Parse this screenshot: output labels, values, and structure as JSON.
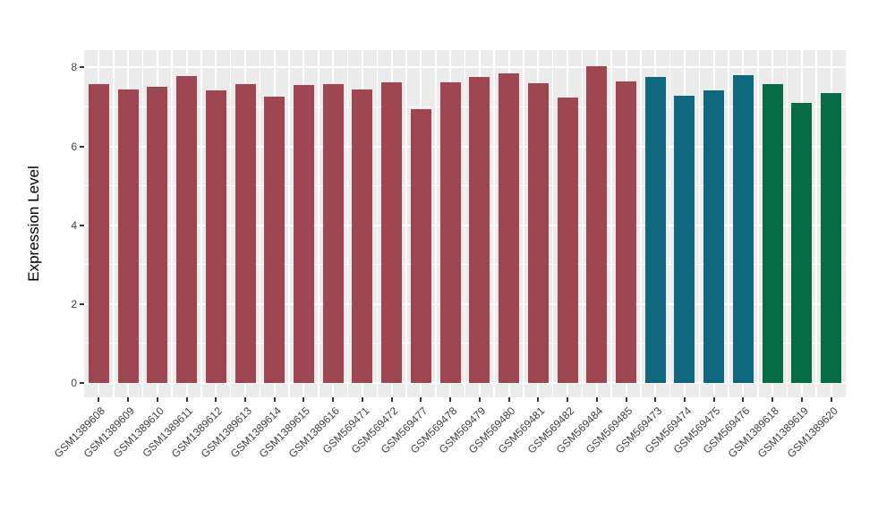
{
  "figure": {
    "background": "#FFFFFF",
    "panel_background": "#EBEBEB",
    "gridline_color": "#FFFFFF",
    "axis_text_color": "#404040",
    "tick_mark_color": "#333333"
  },
  "chart_data": {
    "type": "bar",
    "title": "",
    "xlabel": "",
    "ylabel": "Expression Level",
    "ylim": [
      0,
      8.44
    ],
    "yticks": [
      0,
      2,
      4,
      6,
      8
    ],
    "grid": true,
    "legend_position": "none",
    "categories": [
      "GSM1389608",
      "GSM1389609",
      "GSM1389610",
      "GSM1389611",
      "GSM1389612",
      "GSM1389613",
      "GSM1389614",
      "GSM1389615",
      "GSM1389616",
      "GSM569471",
      "GSM569472",
      "GSM569477",
      "GSM569478",
      "GSM569479",
      "GSM569480",
      "GSM569481",
      "GSM569482",
      "GSM569484",
      "GSM569485",
      "GSM569473",
      "GSM569474",
      "GSM569475",
      "GSM569476",
      "GSM1389618",
      "GSM1389619",
      "GSM1389620"
    ],
    "values": [
      7.58,
      7.45,
      7.5,
      7.78,
      7.42,
      7.58,
      7.27,
      7.56,
      7.58,
      7.45,
      7.63,
      6.94,
      7.62,
      7.76,
      7.85,
      7.6,
      7.24,
      8.03,
      7.64,
      7.75,
      7.28,
      7.43,
      7.8,
      7.58,
      7.11,
      7.35
    ],
    "group_of": [
      0,
      0,
      0,
      0,
      0,
      0,
      0,
      0,
      0,
      0,
      0,
      0,
      0,
      0,
      0,
      0,
      0,
      0,
      0,
      1,
      1,
      1,
      1,
      2,
      2,
      2
    ],
    "group_colors": [
      "#9E4752",
      "#10687E",
      "#076C46"
    ]
  }
}
